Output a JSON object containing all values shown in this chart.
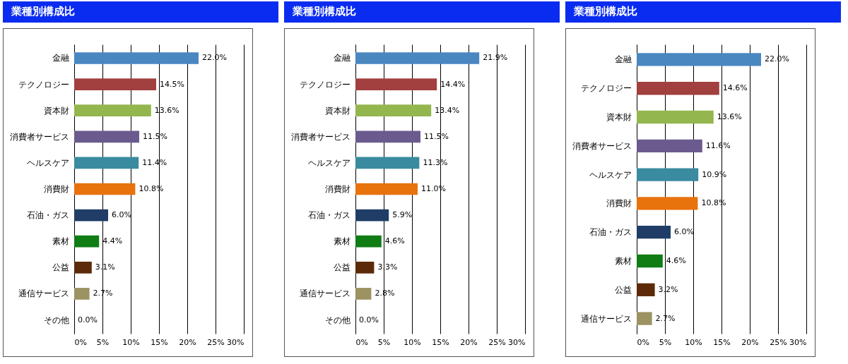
{
  "chart_data": [
    {
      "type": "bar",
      "orientation": "horizontal",
      "title": "業種別構成比",
      "categories": [
        "金融",
        "テクノロジー",
        "資本財",
        "消費者サービス",
        "ヘルスケア",
        "消費財",
        "石油・ガス",
        "素材",
        "公益",
        "通信サービス",
        "その他"
      ],
      "values": [
        22.0,
        14.5,
        13.6,
        11.5,
        11.4,
        10.8,
        6.0,
        4.4,
        3.1,
        2.7,
        0.0
      ],
      "value_labels": [
        "22.0%",
        "14.5%",
        "13.6%",
        "11.5%",
        "11.4%",
        "10.8%",
        "6.0%",
        "4.4%",
        "3.1%",
        "2.7%",
        "0.0%"
      ],
      "colors": [
        "#4a86c0",
        "#a23f3f",
        "#94b64e",
        "#6b5a8e",
        "#3a8aa0",
        "#e8720c",
        "#1f3d66",
        "#0f7d14",
        "#5c2a08",
        "#9c9262",
        "#888888"
      ],
      "xlim": [
        0,
        30
      ],
      "xticks": [
        {
          "value": 0,
          "label": "0%"
        },
        {
          "value": 5,
          "label": "5%"
        },
        {
          "value": 10,
          "label": "10%"
        },
        {
          "value": 15,
          "label": "15%"
        },
        {
          "value": 20,
          "label": "20%"
        },
        {
          "value": 25,
          "label": "25%"
        },
        {
          "value": 30,
          "label": "30%"
        }
      ],
      "grid": "x"
    },
    {
      "type": "bar",
      "orientation": "horizontal",
      "title": "業種別構成比",
      "categories": [
        "金融",
        "テクノロジー",
        "資本財",
        "消費者サービス",
        "ヘルスケア",
        "消費財",
        "石油・ガス",
        "素材",
        "公益",
        "通信サービス",
        "その他"
      ],
      "values": [
        21.9,
        14.4,
        13.4,
        11.5,
        11.3,
        11.0,
        5.9,
        4.6,
        3.3,
        2.8,
        0.0
      ],
      "value_labels": [
        "21.9%",
        "14.4%",
        "13.4%",
        "11.5%",
        "11.3%",
        "11.0%",
        "5.9%",
        "4.6%",
        "3.3%",
        "2.8%",
        "0.0%"
      ],
      "colors": [
        "#4a86c0",
        "#a23f3f",
        "#94b64e",
        "#6b5a8e",
        "#3a8aa0",
        "#e8720c",
        "#1f3d66",
        "#0f7d14",
        "#5c2a08",
        "#9c9262",
        "#888888"
      ],
      "xlim": [
        0,
        30
      ],
      "xticks": [
        {
          "value": 0,
          "label": "0%"
        },
        {
          "value": 5,
          "label": "5%"
        },
        {
          "value": 10,
          "label": "10%"
        },
        {
          "value": 15,
          "label": "15%"
        },
        {
          "value": 20,
          "label": "20%"
        },
        {
          "value": 25,
          "label": "25%"
        },
        {
          "value": 30,
          "label": "30%"
        }
      ],
      "grid": "x"
    },
    {
      "type": "bar",
      "orientation": "horizontal",
      "title": "業種別構成比",
      "categories": [
        "金融",
        "テクノロジー",
        "資本財",
        "消費者サービス",
        "ヘルスケア",
        "消費財",
        "石油・ガス",
        "素材",
        "公益",
        "通信サービス"
      ],
      "values": [
        22.0,
        14.6,
        13.6,
        11.6,
        10.9,
        10.8,
        6.0,
        4.6,
        3.2,
        2.7
      ],
      "value_labels": [
        "22.0%",
        "14.6%",
        "13.6%",
        "11.6%",
        "10.9%",
        "10.8%",
        "6.0%",
        "4.6%",
        "3.2%",
        "2.7%"
      ],
      "colors": [
        "#4a86c0",
        "#a23f3f",
        "#94b64e",
        "#6b5a8e",
        "#3a8aa0",
        "#e8720c",
        "#1f3d66",
        "#0f7d14",
        "#5c2a08",
        "#9c9262"
      ],
      "xlim": [
        0,
        30
      ],
      "xticks": [
        {
          "value": 0,
          "label": "0%"
        },
        {
          "value": 5,
          "label": "5%"
        },
        {
          "value": 10,
          "label": "10%"
        },
        {
          "value": 15,
          "label": "15%"
        },
        {
          "value": 20,
          "label": "20%"
        },
        {
          "value": 25,
          "label": "25%"
        },
        {
          "value": 30,
          "label": "30%"
        }
      ],
      "grid": "x"
    }
  ]
}
